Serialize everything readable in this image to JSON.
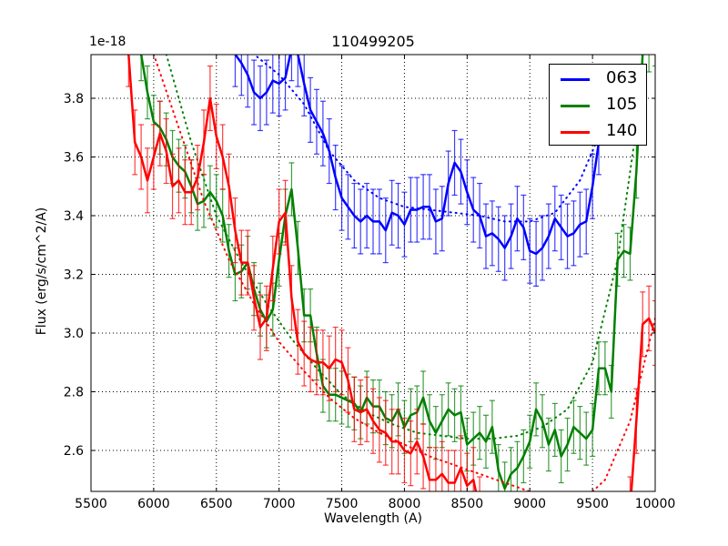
{
  "chart_data": {
    "type": "line",
    "title": "110499205",
    "xlabel": "Wavelength (A)",
    "ylabel": "Flux (erg/s/cm^2/A)",
    "y_offset_label": "1e-18",
    "xlim": [
      5500,
      10000
    ],
    "ylim": [
      2.46,
      3.95
    ],
    "y_scale_factor": 1e-18,
    "grid": true,
    "legend_position": "upper right",
    "x_ticks": [
      5500,
      6000,
      6500,
      7000,
      7500,
      8000,
      8500,
      9000,
      9500,
      10000
    ],
    "y_ticks": [
      2.6,
      2.8,
      3.0,
      3.2,
      3.4,
      3.6,
      3.8
    ],
    "series": [
      {
        "name": "063",
        "color": "#0000ff",
        "x": [
          6650,
          6700,
          6750,
          6800,
          6850,
          6900,
          6950,
          7000,
          7050,
          7100,
          7150,
          7200,
          7250,
          7300,
          7350,
          7400,
          7450,
          7500,
          7550,
          7600,
          7650,
          7700,
          7750,
          7800,
          7850,
          7900,
          7950,
          8000,
          8050,
          8100,
          8150,
          8200,
          8250,
          8300,
          8350,
          8400,
          8450,
          8500,
          8550,
          8600,
          8650,
          8700,
          8750,
          8800,
          8850,
          8900,
          8950,
          9000,
          9050,
          9100,
          9150,
          9200,
          9250,
          9300,
          9350,
          9400,
          9450,
          9500,
          9550
        ],
        "y": [
          3.95,
          3.92,
          3.88,
          3.82,
          3.8,
          3.82,
          3.86,
          3.85,
          3.87,
          3.97,
          3.95,
          3.85,
          3.76,
          3.72,
          3.68,
          3.62,
          3.53,
          3.46,
          3.43,
          3.4,
          3.38,
          3.4,
          3.38,
          3.38,
          3.35,
          3.41,
          3.4,
          3.37,
          3.42,
          3.42,
          3.43,
          3.43,
          3.38,
          3.39,
          3.51,
          3.58,
          3.55,
          3.48,
          3.42,
          3.4,
          3.33,
          3.34,
          3.32,
          3.29,
          3.33,
          3.39,
          3.36,
          3.28,
          3.27,
          3.29,
          3.33,
          3.39,
          3.36,
          3.33,
          3.34,
          3.37,
          3.38,
          3.5,
          3.65
        ],
        "yerr": 0.11,
        "model": {
          "x": [
            6600,
            6800,
            7000,
            7200,
            7400,
            7600,
            7800,
            8000,
            8200,
            8400,
            8600,
            8800,
            9000,
            9200,
            9400,
            9600
          ],
          "y": [
            4.1,
            3.95,
            3.88,
            3.78,
            3.62,
            3.52,
            3.46,
            3.43,
            3.42,
            3.41,
            3.4,
            3.38,
            3.38,
            3.41,
            3.52,
            3.72
          ]
        }
      },
      {
        "name": "105",
        "color": "#008000",
        "x": [
          5900,
          5950,
          6000,
          6050,
          6100,
          6150,
          6200,
          6250,
          6300,
          6350,
          6400,
          6450,
          6500,
          6550,
          6600,
          6650,
          6700,
          6750,
          6800,
          6850,
          6900,
          6950,
          7000,
          7050,
          7100,
          7150,
          7200,
          7250,
          7300,
          7350,
          7400,
          7450,
          7500,
          7550,
          7600,
          7650,
          7700,
          7750,
          7800,
          7850,
          7900,
          7950,
          8000,
          8050,
          8100,
          8150,
          8200,
          8250,
          8300,
          8350,
          8400,
          8450,
          8500,
          8550,
          8600,
          8650,
          8700,
          8750,
          8800,
          8850,
          8900,
          8950,
          9000,
          9050,
          9100,
          9150,
          9200,
          9250,
          9300,
          9350,
          9400,
          9450,
          9500,
          9550,
          9600,
          9650,
          9700,
          9750,
          9800,
          9850,
          9900,
          9950,
          10000
        ],
        "y": [
          3.95,
          3.82,
          3.72,
          3.7,
          3.66,
          3.6,
          3.57,
          3.55,
          3.5,
          3.44,
          3.45,
          3.48,
          3.45,
          3.4,
          3.28,
          3.2,
          3.21,
          3.24,
          3.15,
          3.08,
          3.04,
          3.08,
          3.25,
          3.4,
          3.49,
          3.29,
          3.06,
          3.06,
          2.93,
          2.82,
          2.79,
          2.79,
          2.78,
          2.77,
          2.76,
          2.73,
          2.78,
          2.75,
          2.75,
          2.71,
          2.7,
          2.74,
          2.68,
          2.72,
          2.73,
          2.78,
          2.7,
          2.66,
          2.7,
          2.74,
          2.72,
          2.73,
          2.62,
          2.64,
          2.66,
          2.63,
          2.68,
          2.53,
          2.47,
          2.52,
          2.54,
          2.58,
          2.63,
          2.74,
          2.7,
          2.62,
          2.67,
          2.58,
          2.62,
          2.68,
          2.66,
          2.64,
          2.67,
          2.88,
          2.88,
          2.8,
          3.25,
          3.28,
          3.27,
          3.55,
          3.95,
          3.98,
          4.0
        ],
        "yerr": 0.09,
        "model": {
          "x": [
            6100,
            6300,
            6500,
            6700,
            6900,
            7100,
            7300,
            7500,
            7700,
            7900,
            8100,
            8300,
            8500,
            8700,
            8900,
            9100,
            9300,
            9500,
            9700,
            9900
          ],
          "y": [
            3.95,
            3.65,
            3.4,
            3.24,
            3.1,
            2.98,
            2.88,
            2.79,
            2.73,
            2.69,
            2.66,
            2.65,
            2.64,
            2.64,
            2.65,
            2.68,
            2.74,
            2.9,
            3.25,
            3.85
          ]
        }
      },
      {
        "name": "140",
        "color": "#ff0000",
        "x": [
          5800,
          5850,
          5900,
          5950,
          6000,
          6050,
          6100,
          6150,
          6200,
          6250,
          6300,
          6350,
          6400,
          6450,
          6500,
          6550,
          6600,
          6650,
          6700,
          6750,
          6800,
          6850,
          6900,
          6950,
          7000,
          7050,
          7100,
          7150,
          7200,
          7250,
          7300,
          7350,
          7400,
          7450,
          7500,
          7550,
          7600,
          7650,
          7700,
          7750,
          7800,
          7850,
          7900,
          7950,
          8000,
          8050,
          8100,
          8150,
          8200,
          8250,
          8300,
          8350,
          8400,
          8450,
          8500,
          8550,
          8600,
          8650,
          8700,
          8750,
          8800,
          8850,
          8900,
          9550,
          9600,
          9650,
          9700,
          9750,
          9800,
          9850,
          9900,
          9950,
          10000
        ],
        "y": [
          3.95,
          3.65,
          3.6,
          3.52,
          3.6,
          3.68,
          3.62,
          3.5,
          3.52,
          3.48,
          3.48,
          3.53,
          3.65,
          3.8,
          3.67,
          3.6,
          3.5,
          3.35,
          3.24,
          3.24,
          3.12,
          3.02,
          3.05,
          3.22,
          3.38,
          3.41,
          3.12,
          2.97,
          2.93,
          2.91,
          2.9,
          2.9,
          2.88,
          2.91,
          2.9,
          2.84,
          2.74,
          2.73,
          2.74,
          2.7,
          2.67,
          2.66,
          2.63,
          2.63,
          2.6,
          2.59,
          2.63,
          2.58,
          2.5,
          2.5,
          2.52,
          2.49,
          2.49,
          2.54,
          2.48,
          2.5,
          2.4,
          2.35,
          2.3,
          2.3,
          2.3,
          2.3,
          2.3,
          2.3,
          2.3,
          2.3,
          2.3,
          2.3,
          2.4,
          2.7,
          3.03,
          3.05,
          3.0
        ],
        "yerr": 0.11,
        "model": {
          "x": [
            6000,
            6200,
            6400,
            6600,
            6800,
            7000,
            7200,
            7400,
            7600,
            7800,
            8000,
            8200,
            8400,
            8600,
            8800,
            9000,
            9200,
            9400,
            9600,
            9800,
            10000
          ],
          "y": [
            3.95,
            3.7,
            3.45,
            3.25,
            3.1,
            2.97,
            2.87,
            2.78,
            2.71,
            2.66,
            2.62,
            2.58,
            2.55,
            2.52,
            2.49,
            2.46,
            2.43,
            2.42,
            2.5,
            2.7,
            3.05
          ]
        }
      }
    ]
  },
  "legend": {
    "items": [
      {
        "label": "063",
        "color": "#0000ff"
      },
      {
        "label": "105",
        "color": "#008000"
      },
      {
        "label": "140",
        "color": "#ff0000"
      }
    ]
  }
}
